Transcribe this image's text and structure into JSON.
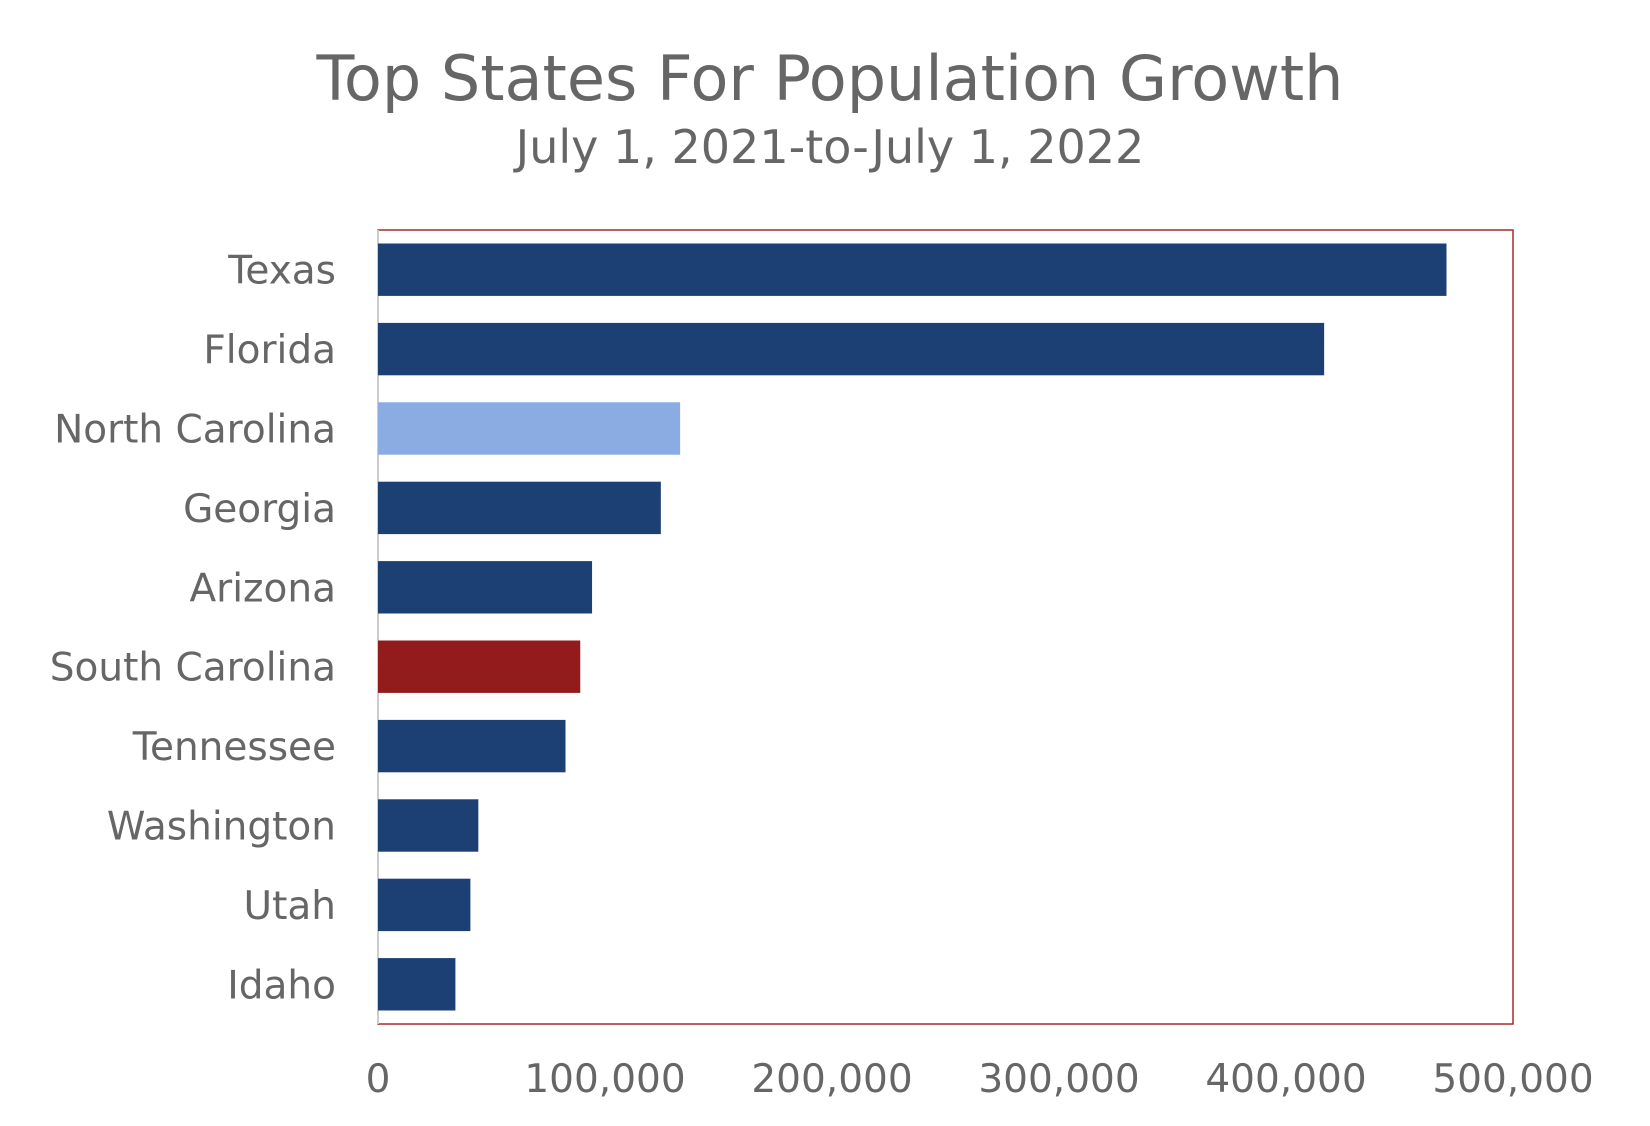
{
  "chart_data": {
    "type": "bar",
    "orientation": "horizontal",
    "title": "Top States For Population Growth",
    "subtitle": "July 1, 2021-to-July 1, 2022",
    "xlabel": "",
    "ylabel": "",
    "categories": [
      "Texas",
      "Florida",
      "North Carolina",
      "Georgia",
      "Arizona",
      "South Carolina",
      "Tennessee",
      "Washington",
      "Utah",
      "Idaho"
    ],
    "values": [
      470700,
      416800,
      133100,
      124600,
      94300,
      89100,
      82600,
      44200,
      40700,
      34100
    ],
    "xlim": [
      0,
      500000
    ],
    "xticks": [
      "0",
      "100,000",
      "200,000",
      "300,000",
      "400,000",
      "500,000"
    ],
    "xtick_values": [
      0,
      100000,
      200000,
      300000,
      400000,
      500000
    ],
    "grid": false,
    "legend": "none",
    "colors": {
      "default": "#1c3f74",
      "North Carolina": "#8aace3",
      "South Carolina": "#921c1c",
      "plot_border": "#a52a2a"
    }
  }
}
